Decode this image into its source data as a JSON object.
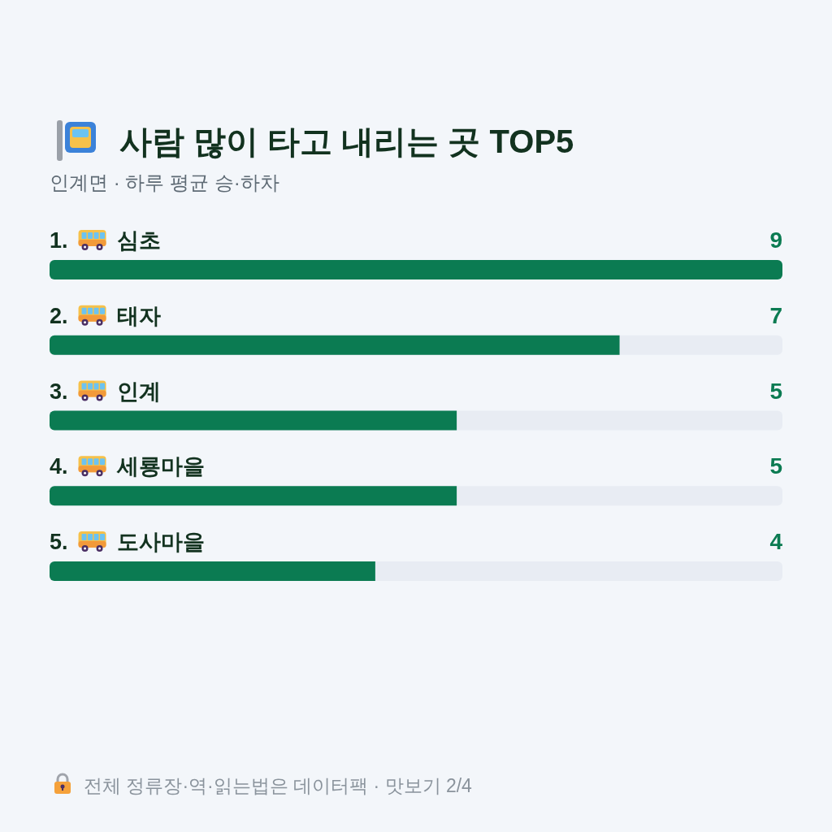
{
  "chart_data": {
    "type": "bar",
    "orientation": "horizontal",
    "title": "사람 많이 타고 내리는 곳 TOP5",
    "subtitle": "인계면 · 하루 평균 승·하차",
    "categories": [
      "1. 심초",
      "2. 태자",
      "3. 인계",
      "4. 세룡마을",
      "5. 도사마을"
    ],
    "values": [
      9,
      7,
      5,
      5,
      4
    ],
    "color": "#0b7b52",
    "xlim": [
      0,
      9
    ],
    "data_labels": true,
    "annotations": [
      "전체 정류장·역·읽는법은 데이터팩 · 맛보기 2/4"
    ]
  }
}
